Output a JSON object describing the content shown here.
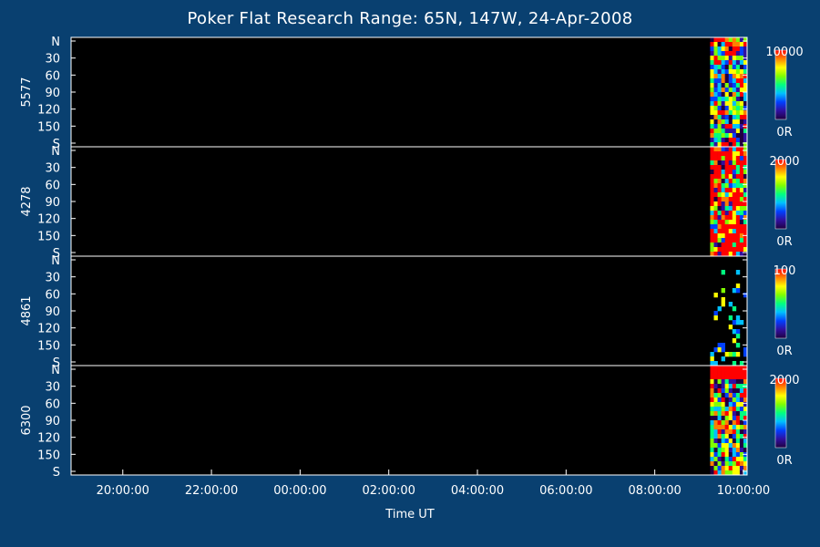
{
  "title": "Poker Flat Research Range: 65N, 147W, 24-Apr-2008",
  "chart_data": {
    "type": "heatmap",
    "title": "Poker Flat Research Range: 65N, 147W, 24-Apr-2008",
    "xlabel": "Time UT",
    "x_ticks": [
      "20:00:00",
      "22:00:00",
      "00:00:00",
      "02:00:00",
      "04:00:00",
      "06:00:00",
      "08:00:00",
      "10:00:00"
    ],
    "y_ticks": [
      "N",
      "30",
      "60",
      "90",
      "120",
      "150",
      "S"
    ],
    "data_start_time": "09:15:00",
    "panels": [
      {
        "name": "5577",
        "scale_max": "10000",
        "scale_min": "0R"
      },
      {
        "name": "4278",
        "scale_max": "2000",
        "scale_min": "0R"
      },
      {
        "name": "4861",
        "scale_max": "100",
        "scale_min": "0R"
      },
      {
        "name": "6300",
        "scale_max": "2000",
        "scale_min": "0R"
      }
    ],
    "colorscale": [
      "#200040",
      "#3010a0",
      "#0040ff",
      "#00c0ff",
      "#00ff80",
      "#80ff00",
      "#ffff00",
      "#ff8000",
      "#ff0000"
    ]
  }
}
